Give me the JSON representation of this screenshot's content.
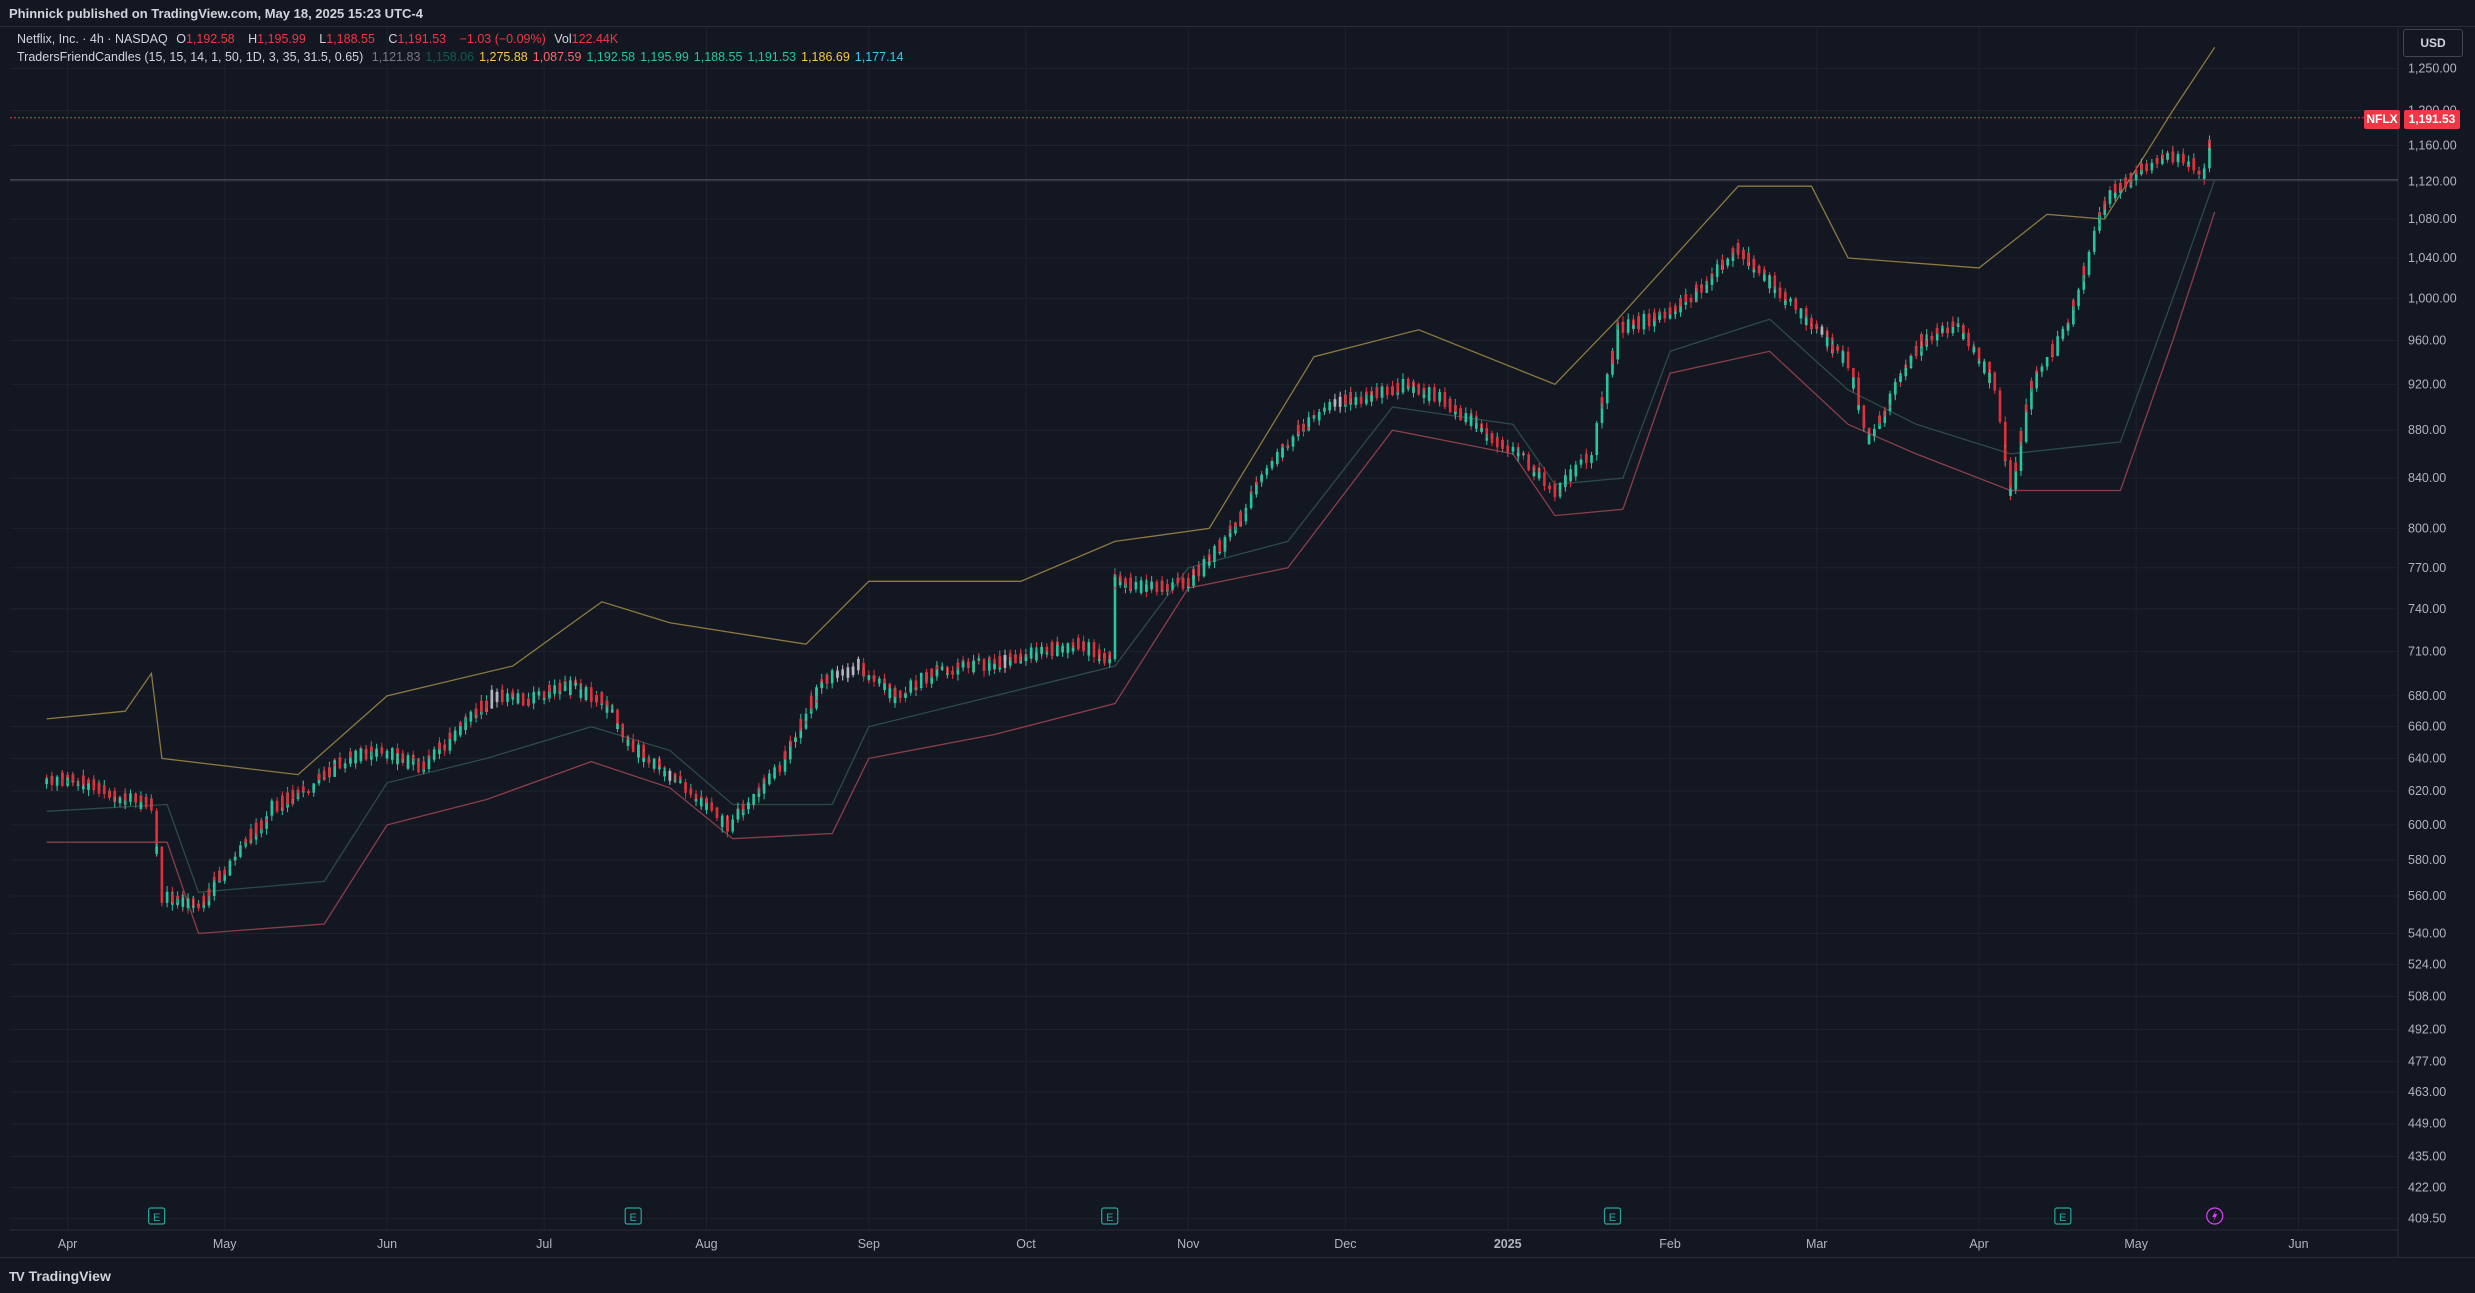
{
  "header": {
    "text": "Phinnick published on TradingView.com, May 18, 2025 15:23 UTC-4"
  },
  "legend": {
    "title": "Netflix, Inc. · 4h · NASDAQ",
    "open_label": "O",
    "open": "1,192.58",
    "high_label": "H",
    "high": "1,195.99",
    "low_label": "L",
    "low": "1,188.55",
    "close_label": "C",
    "close": "1,191.53",
    "change": "−1.03 (−0.09%)",
    "vol_label": "Vol",
    "vol": "122.44K",
    "indicator_name": "TradersFriendCandles (15, 15, 14, 1, 50, 1D, 3, 35, 31.5, 0.65)",
    "indicator_values": [
      {
        "v": "1,121.83",
        "color": "#787b86"
      },
      {
        "v": "1,158.06",
        "color": "#0b5e50"
      },
      {
        "v": "1,275.88",
        "color": "#f7c948"
      },
      {
        "v": "1,087.59",
        "color": "#f26d6d"
      },
      {
        "v": "1,192.58",
        "color": "#26c6a0"
      },
      {
        "v": "1,195.99",
        "color": "#26c6a0"
      },
      {
        "v": "1,188.55",
        "color": "#26c6a0"
      },
      {
        "v": "1,191.53",
        "color": "#26c6a0"
      },
      {
        "v": "1,186.69",
        "color": "#f7c948"
      },
      {
        "v": "1,177.14",
        "color": "#42c5f5"
      }
    ]
  },
  "price_scale": {
    "currency": "USD",
    "symbol_tag": "NFLX",
    "last_price": "1,191.53"
  },
  "footer": {
    "logo_mark": "TV",
    "brand": "TradingView"
  },
  "colors": {
    "bg": "#131722",
    "up": "#26c6a0",
    "down": "#e0303c",
    "neutral": "#b2b5be",
    "upper": "#8c7a3e",
    "lower": "#8c3e4a",
    "mid": "#2e4a48"
  },
  "chart_data": {
    "type": "candlestick",
    "symbol": "NFLX",
    "interval": "4h",
    "y_scale": "log",
    "ylim": [
      405,
      1300
    ],
    "y_ticks": [
      409.5,
      422,
      435,
      449,
      463,
      477,
      492,
      508,
      524,
      540,
      560,
      580,
      600,
      620,
      640,
      660,
      680,
      710,
      740,
      770,
      800,
      840,
      880,
      920,
      960,
      1000,
      1040,
      1080,
      1120,
      1160,
      1200,
      1250
    ],
    "x_ticks": [
      "Apr",
      "May",
      "Jun",
      "Jul",
      "Aug",
      "Sep",
      "Oct",
      "Nov",
      "Dec",
      "2025",
      "Feb",
      "Mar",
      "Apr",
      "May",
      "Jun"
    ],
    "earnings_markers": [
      "Apr",
      "Jul",
      "Oct",
      "Jan",
      "Apr"
    ],
    "earnings_label": "E",
    "horizontal_levels": [
      1191.53,
      1121.83
    ],
    "close_path": [
      [
        "2024-03-28",
        628
      ],
      [
        "2024-04-05",
        625
      ],
      [
        "2024-04-12",
        615
      ],
      [
        "2024-04-17",
        612
      ],
      [
        "2024-04-19",
        560
      ],
      [
        "2024-04-26",
        555
      ],
      [
        "2024-05-03",
        582
      ],
      [
        "2024-05-10",
        610
      ],
      [
        "2024-05-17",
        622
      ],
      [
        "2024-05-24",
        640
      ],
      [
        "2024-05-31",
        645
      ],
      [
        "2024-06-07",
        635
      ],
      [
        "2024-06-14",
        655
      ],
      [
        "2024-06-21",
        680
      ],
      [
        "2024-06-28",
        678
      ],
      [
        "2024-07-05",
        687
      ],
      [
        "2024-07-12",
        678
      ],
      [
        "2024-07-17",
        650
      ],
      [
        "2024-07-24",
        632
      ],
      [
        "2024-07-31",
        615
      ],
      [
        "2024-08-05",
        600
      ],
      [
        "2024-08-09",
        612
      ],
      [
        "2024-08-16",
        640
      ],
      [
        "2024-08-23",
        690
      ],
      [
        "2024-08-30",
        700
      ],
      [
        "2024-09-06",
        680
      ],
      [
        "2024-09-13",
        695
      ],
      [
        "2024-09-20",
        700
      ],
      [
        "2024-09-27",
        703
      ],
      [
        "2024-10-04",
        710
      ],
      [
        "2024-10-11",
        715
      ],
      [
        "2024-10-17",
        705
      ],
      [
        "2024-10-18",
        760
      ],
      [
        "2024-10-25",
        755
      ],
      [
        "2024-11-01",
        760
      ],
      [
        "2024-11-08",
        790
      ],
      [
        "2024-11-15",
        840
      ],
      [
        "2024-11-22",
        880
      ],
      [
        "2024-11-29",
        905
      ],
      [
        "2024-12-06",
        910
      ],
      [
        "2024-12-13",
        920
      ],
      [
        "2024-12-20",
        905
      ],
      [
        "2024-12-27",
        880
      ],
      [
        "2025-01-03",
        860
      ],
      [
        "2025-01-10",
        830
      ],
      [
        "2025-01-17",
        860
      ],
      [
        "2025-01-22",
        970
      ],
      [
        "2025-01-31",
        985
      ],
      [
        "2025-02-07",
        1010
      ],
      [
        "2025-02-14",
        1050
      ],
      [
        "2025-02-21",
        1010
      ],
      [
        "2025-02-28",
        975
      ],
      [
        "2025-03-07",
        940
      ],
      [
        "2025-03-11",
        870
      ],
      [
        "2025-03-14",
        900
      ],
      [
        "2025-03-21",
        960
      ],
      [
        "2025-03-28",
        975
      ],
      [
        "2025-04-04",
        920
      ],
      [
        "2025-04-07",
        830
      ],
      [
        "2025-04-11",
        920
      ],
      [
        "2025-04-18",
        975
      ],
      [
        "2025-04-25",
        1100
      ],
      [
        "2025-05-02",
        1135
      ],
      [
        "2025-05-09",
        1150
      ],
      [
        "2025-05-14",
        1130
      ],
      [
        "2025-05-16",
        1191.53
      ]
    ],
    "upper_band": [
      [
        "2024-03-28",
        665
      ],
      [
        "2024-04-12",
        670
      ],
      [
        "2024-04-17",
        695
      ],
      [
        "2024-04-19",
        640
      ],
      [
        "2024-05-15",
        630
      ],
      [
        "2024-06-01",
        680
      ],
      [
        "2024-06-25",
        700
      ],
      [
        "2024-07-12",
        745
      ],
      [
        "2024-07-25",
        730
      ],
      [
        "2024-08-20",
        715
      ],
      [
        "2024-09-01",
        760
      ],
      [
        "2024-09-30",
        760
      ],
      [
        "2024-10-18",
        790
      ],
      [
        "2024-11-05",
        800
      ],
      [
        "2024-11-25",
        945
      ],
      [
        "2024-12-15",
        970
      ],
      [
        "2025-01-10",
        920
      ],
      [
        "2025-01-22",
        980
      ],
      [
        "2025-02-14",
        1115
      ],
      [
        "2025-02-28",
        1115
      ],
      [
        "2025-03-07",
        1040
      ],
      [
        "2025-04-01",
        1030
      ],
      [
        "2025-04-14",
        1085
      ],
      [
        "2025-04-25",
        1080
      ],
      [
        "2025-05-08",
        1200
      ],
      [
        "2025-05-16",
        1275.88
      ]
    ],
    "lower_band": [
      [
        "2024-03-28",
        590
      ],
      [
        "2024-04-20",
        590
      ],
      [
        "2024-04-26",
        540
      ],
      [
        "2024-05-20",
        545
      ],
      [
        "2024-06-01",
        600
      ],
      [
        "2024-06-20",
        615
      ],
      [
        "2024-07-10",
        638
      ],
      [
        "2024-07-25",
        622
      ],
      [
        "2024-08-06",
        592
      ],
      [
        "2024-08-25",
        595
      ],
      [
        "2024-09-01",
        640
      ],
      [
        "2024-09-25",
        655
      ],
      [
        "2024-10-18",
        675
      ],
      [
        "2024-11-01",
        755
      ],
      [
        "2024-11-20",
        770
      ],
      [
        "2024-12-10",
        880
      ],
      [
        "2025-01-02",
        860
      ],
      [
        "2025-01-10",
        810
      ],
      [
        "2025-01-23",
        815
      ],
      [
        "2025-02-01",
        930
      ],
      [
        "2025-02-20",
        950
      ],
      [
        "2025-03-07",
        885
      ],
      [
        "2025-03-20",
        860
      ],
      [
        "2025-04-07",
        830
      ],
      [
        "2025-04-28",
        830
      ],
      [
        "2025-05-08",
        960
      ],
      [
        "2025-05-16",
        1087.59
      ]
    ],
    "mid_band": [
      [
        "2024-03-28",
        608
      ],
      [
        "2024-04-20",
        612
      ],
      [
        "2024-04-26",
        562
      ],
      [
        "2024-05-20",
        568
      ],
      [
        "2024-06-01",
        625
      ],
      [
        "2024-06-20",
        640
      ],
      [
        "2024-07-10",
        660
      ],
      [
        "2024-07-25",
        645
      ],
      [
        "2024-08-06",
        612
      ],
      [
        "2024-08-25",
        612
      ],
      [
        "2024-09-01",
        660
      ],
      [
        "2024-09-25",
        680
      ],
      [
        "2024-10-18",
        700
      ],
      [
        "2024-11-01",
        770
      ],
      [
        "2024-11-20",
        790
      ],
      [
        "2024-12-10",
        900
      ],
      [
        "2025-01-02",
        885
      ],
      [
        "2025-01-10",
        835
      ],
      [
        "2025-01-23",
        840
      ],
      [
        "2025-02-01",
        950
      ],
      [
        "2025-02-20",
        980
      ],
      [
        "2025-03-07",
        915
      ],
      [
        "2025-03-20",
        885
      ],
      [
        "2025-04-07",
        860
      ],
      [
        "2025-04-28",
        870
      ],
      [
        "2025-05-08",
        1000
      ],
      [
        "2025-05-16",
        1121.83
      ]
    ]
  }
}
